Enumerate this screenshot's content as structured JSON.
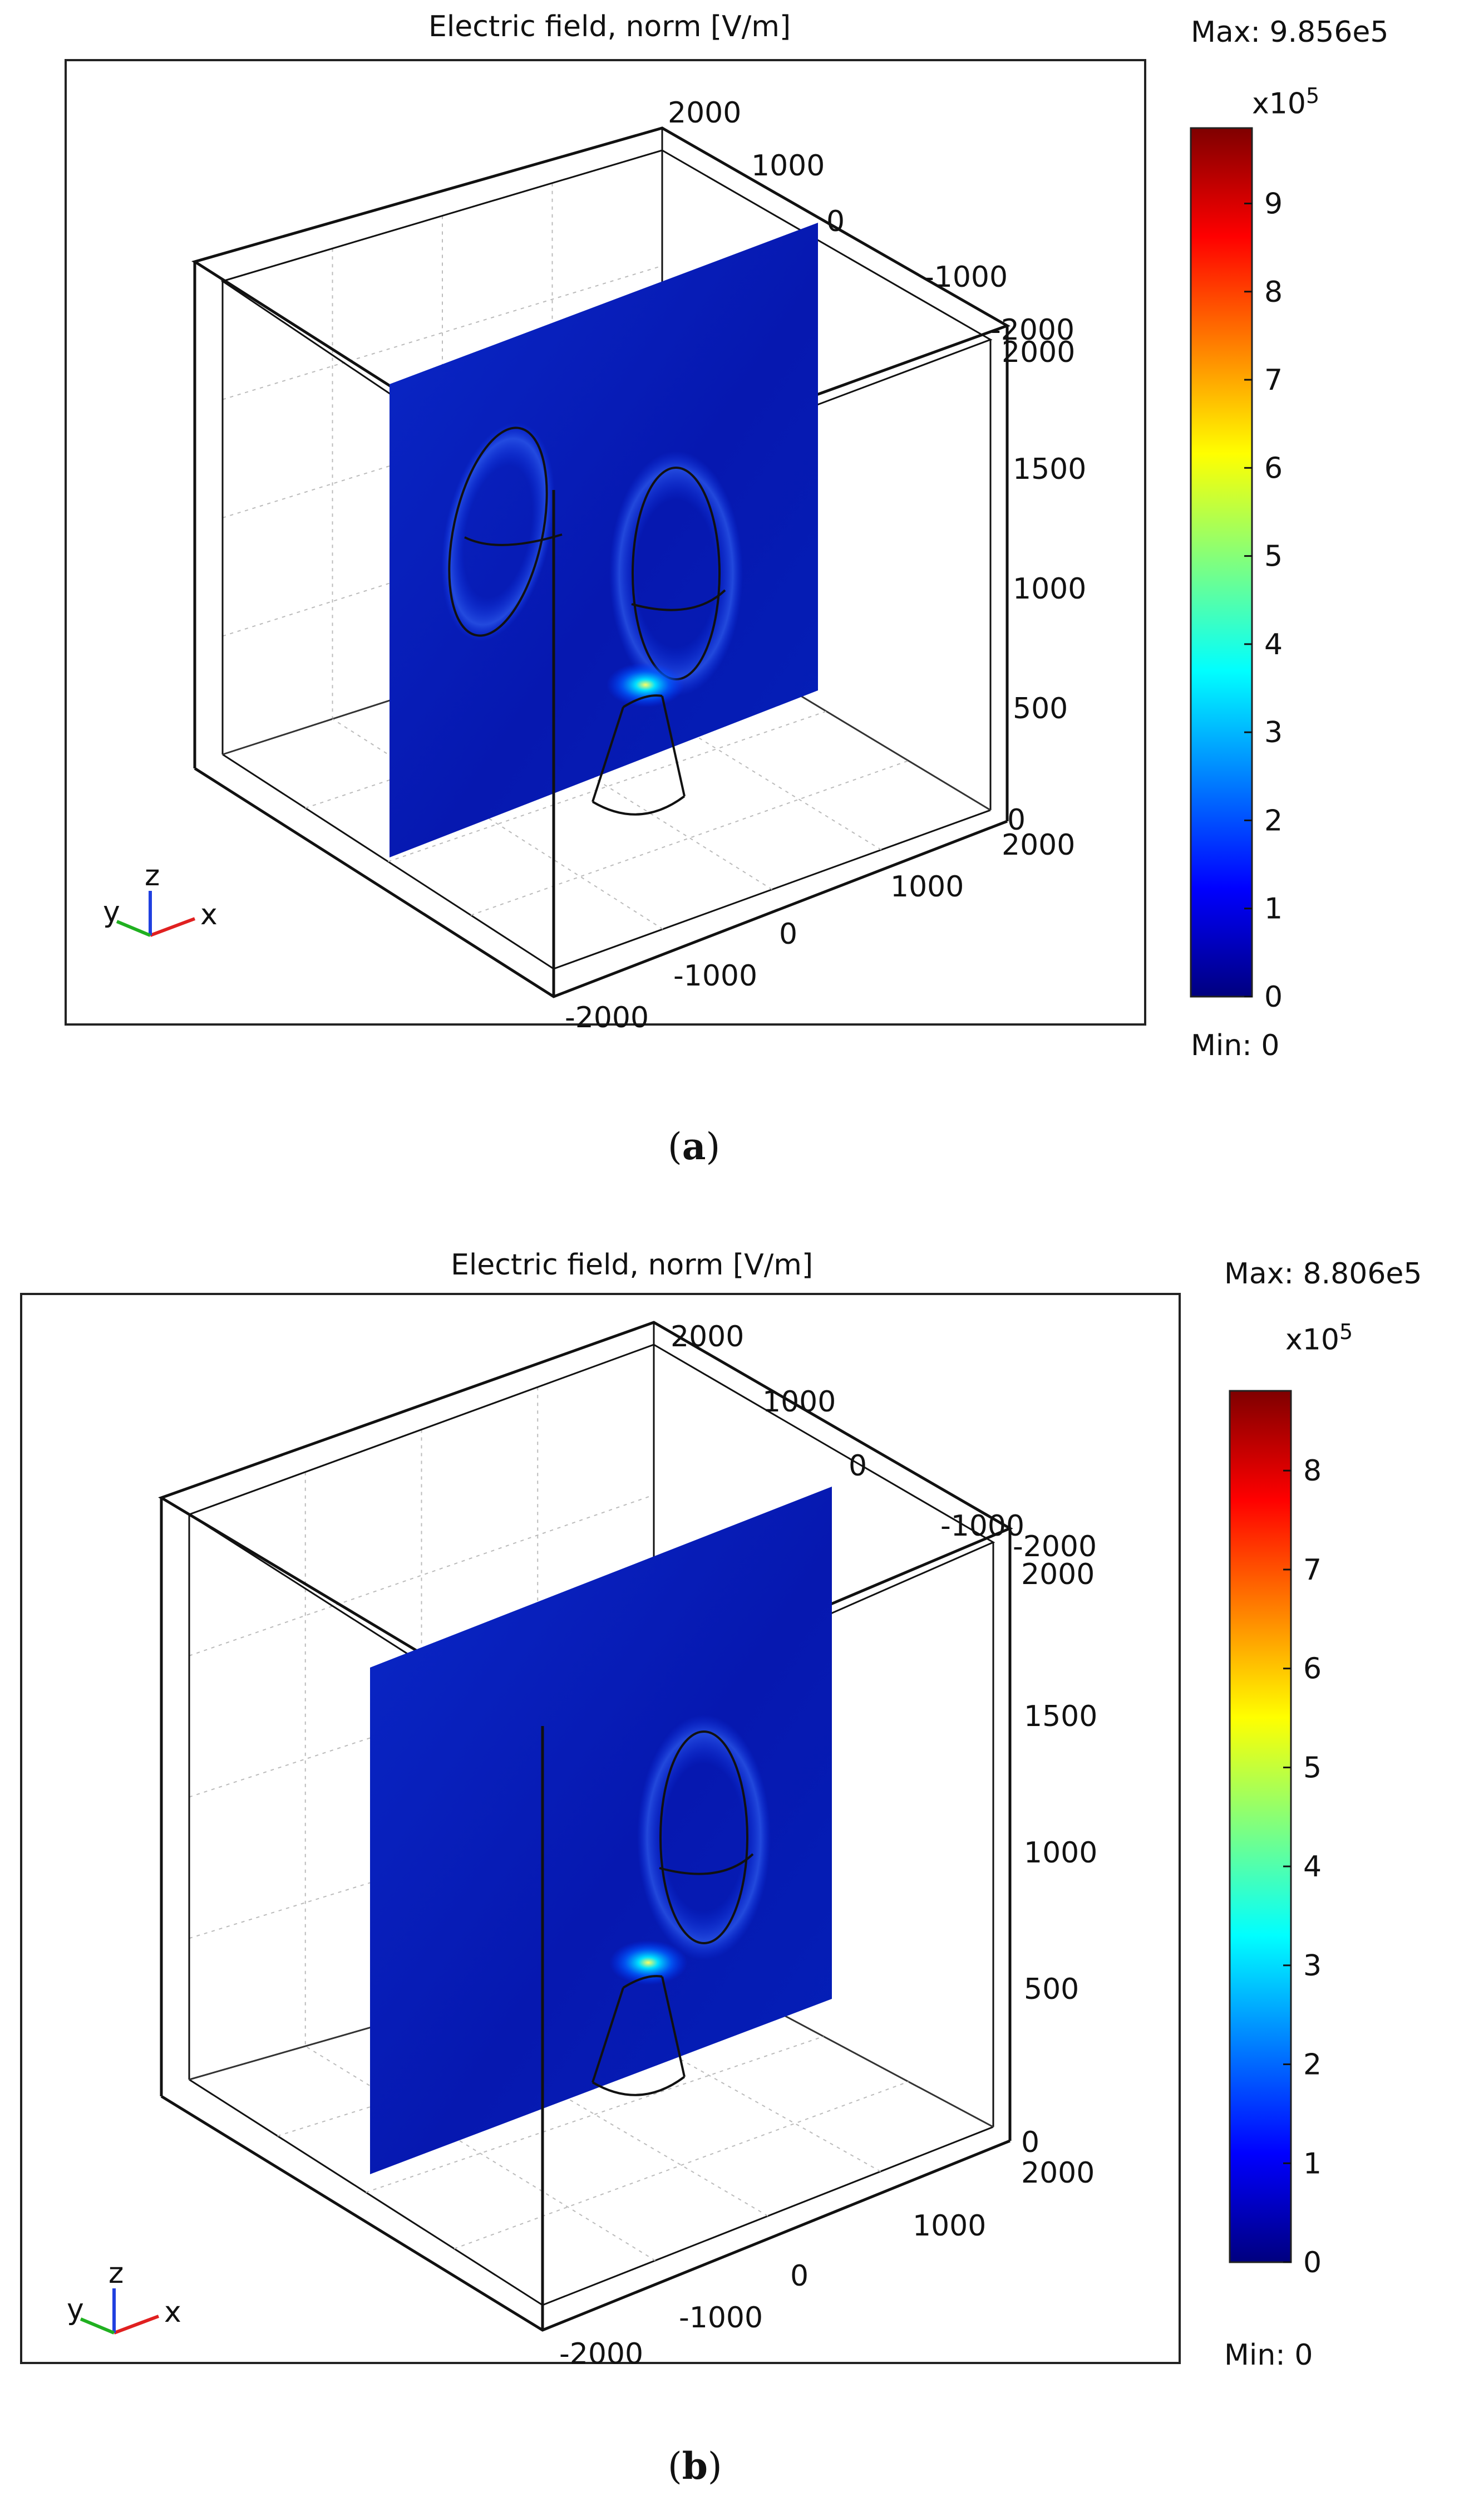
{
  "figures": [
    {
      "id": "a",
      "title": "Electric field, norm [V/m]",
      "max_label": "Max: 9.856e5",
      "min_label": "Min: 0",
      "colorbar_multiplier": "x10",
      "colorbar_exponent": "5",
      "colorbar_ticks": [
        "0",
        "1",
        "2",
        "3",
        "4",
        "5",
        "6",
        "7",
        "8",
        "9"
      ],
      "axis_ticks": {
        "y_back": [
          "2000",
          "1000",
          "0",
          "-1000",
          "-2000"
        ],
        "z": [
          "2000",
          "1500",
          "1000",
          "500",
          "0"
        ],
        "x_front": [
          "2000",
          "1000",
          "0",
          "-1000",
          "-2000"
        ]
      },
      "triad": {
        "y": "y",
        "z": "z",
        "x": "x"
      },
      "sublabel": "a",
      "show_left_ellipse": true
    },
    {
      "id": "b",
      "title": "Electric field, norm [V/m]",
      "max_label": "Max: 8.806e5",
      "min_label": "Min: 0",
      "colorbar_multiplier": "x10",
      "colorbar_exponent": "5",
      "colorbar_ticks": [
        "0",
        "1",
        "2",
        "3",
        "4",
        "5",
        "6",
        "7",
        "8"
      ],
      "axis_ticks": {
        "y_back": [
          "2000",
          "1000",
          "0",
          "-1000",
          "-2000"
        ],
        "z": [
          "2000",
          "1500",
          "1000",
          "500",
          "0"
        ],
        "x_front": [
          "2000",
          "1000",
          "0",
          "-1000",
          "-2000"
        ]
      },
      "triad": {
        "y": "y",
        "z": "z",
        "x": "x"
      },
      "sublabel": "b",
      "show_left_ellipse": false
    }
  ],
  "chart_data": [
    {
      "type": "heatmap",
      "title": "Electric field, norm [V/m]",
      "colorscale": "jet",
      "color_min": 0,
      "color_max": 985600,
      "colorbar_ticks": [
        0,
        1,
        2,
        3,
        4,
        5,
        6,
        7,
        8,
        9
      ],
      "colorbar_scale": "x10^5",
      "axis_ticks": {
        "x": [
          -2000,
          -1000,
          0,
          1000,
          2000
        ],
        "y": [
          -2000,
          -1000,
          0,
          1000,
          2000
        ],
        "z": [
          0,
          500,
          1000,
          1500,
          2000
        ]
      }
    },
    {
      "type": "heatmap",
      "title": "Electric field, norm [V/m]",
      "colorscale": "jet",
      "color_min": 0,
      "color_max": 880600,
      "colorbar_ticks": [
        0,
        1,
        2,
        3,
        4,
        5,
        6,
        7,
        8
      ],
      "colorbar_scale": "x10^5",
      "axis_ticks": {
        "x": [
          -2000,
          -1000,
          0,
          1000,
          2000
        ],
        "y": [
          -2000,
          -1000,
          0,
          1000,
          2000
        ],
        "z": [
          0,
          500,
          1000,
          1500,
          2000
        ]
      }
    }
  ]
}
